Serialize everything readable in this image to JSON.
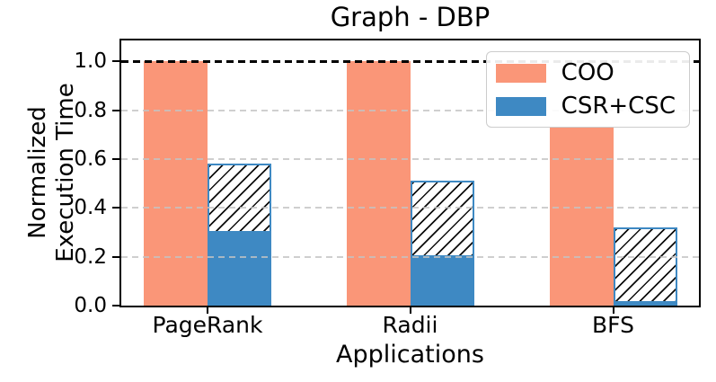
{
  "chart_data": {
    "type": "bar",
    "title": "Graph - DBP",
    "xlabel": "Applications",
    "ylabel": "Normalized Execution Time",
    "ylabel_lines": [
      "Normalized",
      "Execution Time"
    ],
    "categories": [
      "PageRank",
      "Radii",
      "BFS"
    ],
    "series": [
      {
        "name": "COO",
        "style": "solid",
        "color": "#FA9678",
        "values": [
          1.0,
          1.0,
          0.73
        ]
      },
      {
        "name": "CSR+CSC",
        "style": "stacked: solid bottom + hatched top",
        "color": "#3E89C3",
        "hatch": "//",
        "hatch_fill": "#FFFFFF",
        "hatch_line_color": "#0c0c0c",
        "solid_values": [
          0.3,
          0.2,
          0.01
        ],
        "total_values": [
          0.58,
          0.51,
          0.32
        ]
      }
    ],
    "ylim": [
      0,
      1.1
    ],
    "yticks": [
      0.0,
      0.2,
      0.4,
      0.6,
      0.8,
      1.0
    ],
    "ytick_labels": [
      "0.0",
      "0.2",
      "0.4",
      "0.6",
      "0.8",
      "1.0"
    ],
    "grid": {
      "axis": "y",
      "linestyle": "dashed",
      "color": "#C3C3C3",
      "values": [
        0.2,
        0.4,
        0.6,
        0.8
      ],
      "drawn_over_bars": true
    },
    "reference_line": {
      "y": 1.0,
      "linestyle": "dashed",
      "color": "#000000"
    },
    "legend_position": "upper right"
  }
}
